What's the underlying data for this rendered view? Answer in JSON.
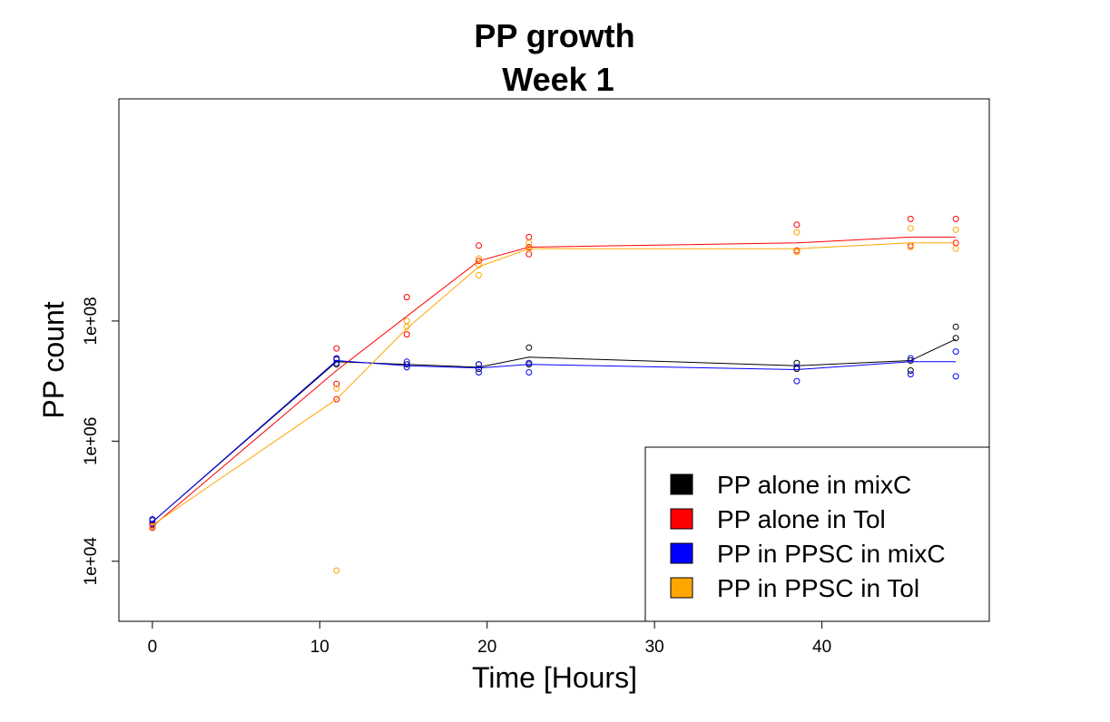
{
  "chart_data": {
    "type": "line",
    "title": "PP growth",
    "subtitle": "Week 1",
    "xlabel": "Time [Hours]",
    "ylabel": "PP count",
    "xlim": [
      -2,
      50
    ],
    "ylim": [
      1000,
      500000000000
    ],
    "yscale": "log",
    "x_ticks": [
      0,
      10,
      20,
      30,
      40
    ],
    "x_tick_labels": [
      "0",
      "10",
      "20",
      "30",
      "40"
    ],
    "y_ticks": [
      10000,
      1000000,
      100000000
    ],
    "y_tick_labels": [
      "1e+04",
      "1e+06",
      "1e+08"
    ],
    "legend_position": "bottom-right",
    "series": [
      {
        "name": "PP alone in mixC",
        "color": "#000000",
        "line": {
          "x": [
            0,
            11,
            15.2,
            19.5,
            22.5,
            38.5,
            45.3,
            48
          ],
          "y": [
            45000,
            21000000,
            19000000,
            17000000,
            25000000,
            18000000,
            22000000,
            50000000
          ]
        },
        "points": {
          "x": [
            0,
            0,
            11,
            11,
            15.2,
            19.5,
            19.5,
            22.5,
            22.5,
            38.5,
            38.5,
            45.3,
            45.3,
            48,
            48
          ],
          "y": [
            40000,
            48000,
            19000000,
            23000000,
            19000000,
            16000000,
            19000000,
            36000000,
            19000000,
            20000000,
            16000000,
            22000000,
            15000000,
            80000000,
            52000000
          ]
        }
      },
      {
        "name": "PP alone in Tol",
        "color": "#ff0000",
        "line": {
          "x": [
            0,
            11,
            15.2,
            19.5,
            22.5,
            38.5,
            45.3,
            48
          ],
          "y": [
            38000,
            15000000,
            120000000,
            1000000000,
            1700000000,
            2000000000,
            2500000000,
            2500000000
          ]
        },
        "points": {
          "x": [
            0,
            0,
            11,
            11,
            11,
            15.2,
            15.2,
            19.5,
            19.5,
            22.5,
            22.5,
            22.5,
            38.5,
            38.5,
            45.3,
            45.3,
            48,
            48
          ],
          "y": [
            36000,
            40000,
            35000000,
            9000000,
            5000000,
            250000000,
            60000000,
            1800000000,
            1000000000,
            2500000000,
            1700000000,
            1300000000,
            4000000000,
            1500000000,
            5000000000,
            1800000000,
            5000000000,
            2000000000
          ]
        }
      },
      {
        "name": "PP in PPSC in mixC",
        "color": "#0000ff",
        "line": {
          "x": [
            0,
            11,
            15.2,
            19.5,
            22.5,
            38.5,
            45.3,
            48
          ],
          "y": [
            45000,
            22000000,
            18000000,
            16500000,
            19000000,
            15500000,
            21000000,
            21000000
          ]
        },
        "points": {
          "x": [
            0,
            0,
            11,
            11,
            15.2,
            15.2,
            19.5,
            19.5,
            22.5,
            22.5,
            38.5,
            38.5,
            45.3,
            45.3,
            48,
            48
          ],
          "y": [
            42000,
            50000,
            24000000,
            20000000,
            21000000,
            17000000,
            19000000,
            14000000,
            20000000,
            14000000,
            17000000,
            10000000,
            24000000,
            13000000,
            31000000,
            12000000
          ]
        }
      },
      {
        "name": "PP in PPSC in Tol",
        "color": "#ffa500",
        "line": {
          "x": [
            0,
            11,
            15.2,
            19.5,
            22.5,
            38.5,
            45.3,
            48
          ],
          "y": [
            40000,
            5000000,
            75000000,
            800000000,
            1600000000,
            1600000000,
            2000000000,
            2000000000
          ]
        },
        "points": {
          "x": [
            0,
            11,
            11,
            15.2,
            15.2,
            19.5,
            19.5,
            19.5,
            22.5,
            22.5,
            38.5,
            38.5,
            45.3,
            45.3,
            48,
            48
          ],
          "y": [
            38000,
            7000,
            7500000,
            100000000,
            80000000,
            1100000000,
            850000000,
            580000000,
            2000000000,
            1600000000,
            3000000000,
            1400000000,
            3500000000,
            1700000000,
            3300000000,
            1600000000
          ]
        }
      }
    ]
  }
}
